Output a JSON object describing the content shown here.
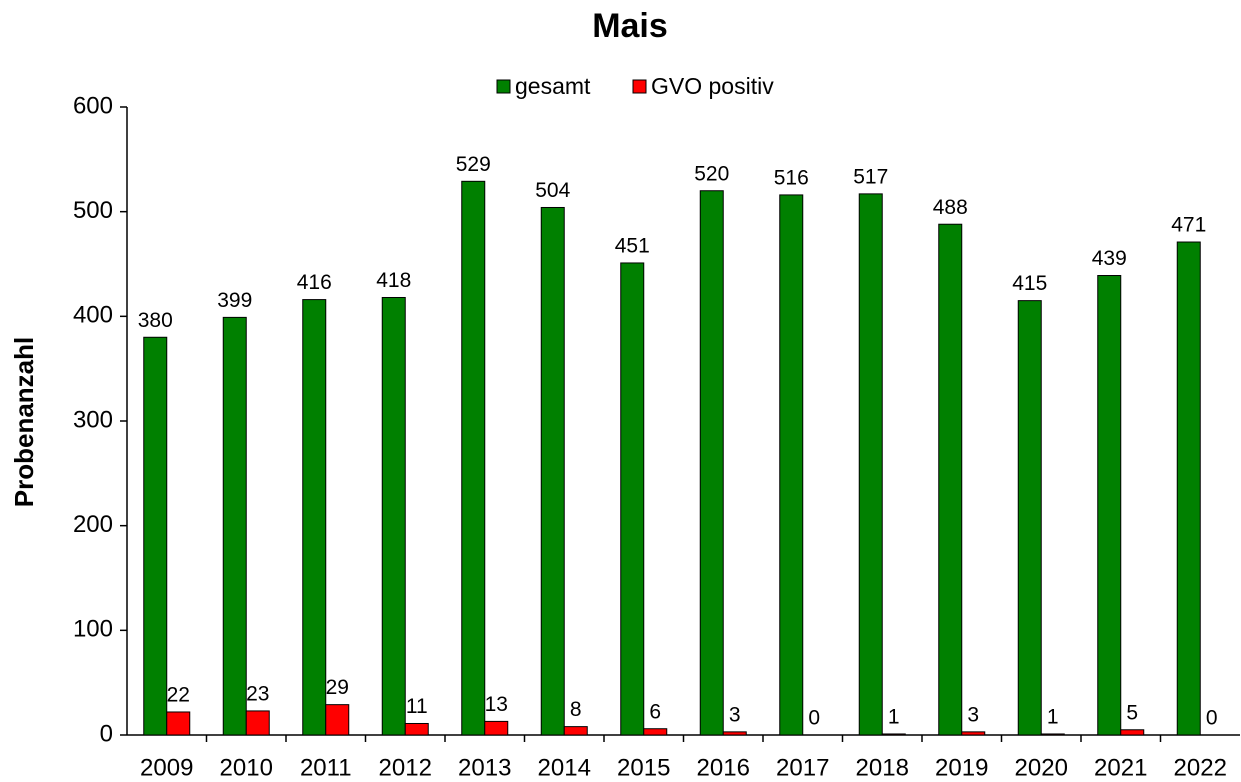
{
  "chart_data": {
    "type": "bar",
    "title": "Mais",
    "y_label": "Probenanzahl",
    "categories": [
      "2009",
      "2010",
      "2011",
      "2012",
      "2013",
      "2014",
      "2015",
      "2016",
      "2017",
      "2018",
      "2019",
      "2020",
      "2021",
      "2022"
    ],
    "series": [
      {
        "name": "gesamt",
        "color": "#008000",
        "values": [
          380,
          399,
          416,
          418,
          529,
          504,
          451,
          520,
          516,
          517,
          488,
          415,
          439,
          471
        ]
      },
      {
        "name": "GVO positiv",
        "color": "#ff0000",
        "values": [
          22,
          23,
          29,
          11,
          13,
          8,
          6,
          3,
          0,
          1,
          3,
          1,
          5,
          0
        ]
      }
    ],
    "ylim": [
      0,
      600
    ],
    "yticks": [
      0,
      100,
      200,
      300,
      400,
      500,
      600
    ],
    "grid": false,
    "legend": "top"
  }
}
